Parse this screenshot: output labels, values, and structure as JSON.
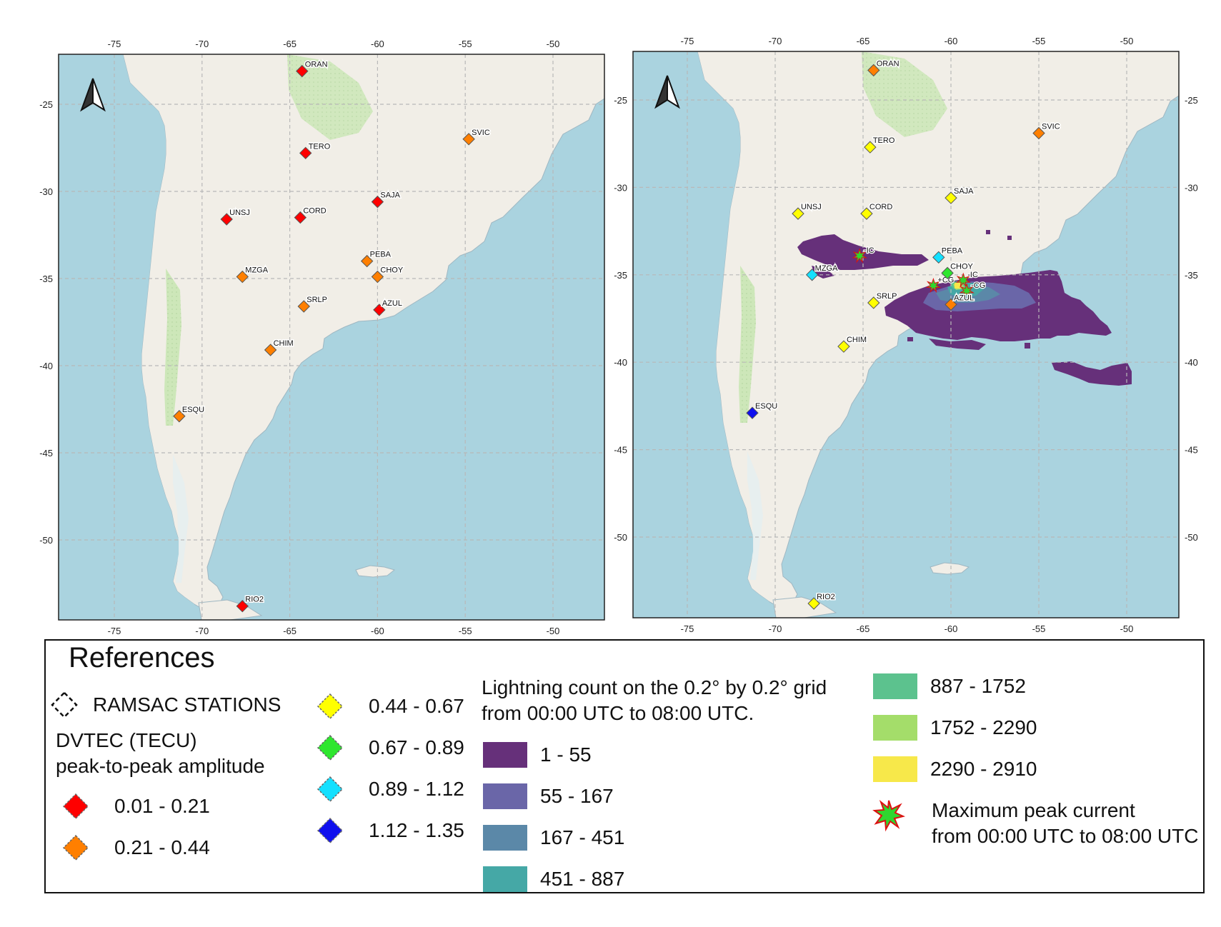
{
  "colors": {
    "ocean": "#aad3df",
    "land": "#f1eee7",
    "forest": "#c5e3b0",
    "park": "#dcecc8",
    "grid": "#b9b9b9",
    "border": "#222222"
  },
  "maps": [
    {
      "id": "left",
      "x_ticks": [
        "-75",
        "-70",
        "-65",
        "-60",
        "-55",
        "-50"
      ],
      "y_ticks": [
        "-25",
        "-30",
        "-35",
        "-40",
        "-45",
        "-50"
      ],
      "stations": [
        {
          "code": "ORAN",
          "lon": -64.3,
          "lat": -23.1,
          "class": "0.01 - 0.21"
        },
        {
          "code": "TERO",
          "lon": -64.1,
          "lat": -27.8,
          "class": "0.01 - 0.21"
        },
        {
          "code": "SVIC",
          "lon": -54.8,
          "lat": -27.0,
          "class": "0.21 - 0.44"
        },
        {
          "code": "SAJA",
          "lon": -60.0,
          "lat": -30.6,
          "class": "0.01 - 0.21"
        },
        {
          "code": "UNSJ",
          "lon": -68.6,
          "lat": -31.6,
          "class": "0.01 - 0.21"
        },
        {
          "code": "CORD",
          "lon": -64.4,
          "lat": -31.5,
          "class": "0.01 - 0.21"
        },
        {
          "code": "PEBA",
          "lon": -60.6,
          "lat": -34.0,
          "class": "0.21 - 0.44"
        },
        {
          "code": "MZGA",
          "lon": -67.7,
          "lat": -34.9,
          "class": "0.21 - 0.44"
        },
        {
          "code": "CHOY",
          "lon": -60.0,
          "lat": -34.9,
          "class": "0.21 - 0.44"
        },
        {
          "code": "SRLP",
          "lon": -64.2,
          "lat": -36.6,
          "class": "0.21 - 0.44"
        },
        {
          "code": "AZUL",
          "lon": -59.9,
          "lat": -36.8,
          "class": "0.01 - 0.21"
        },
        {
          "code": "CHIM",
          "lon": -66.1,
          "lat": -39.1,
          "class": "0.21 - 0.44"
        },
        {
          "code": "ESQU",
          "lon": -71.3,
          "lat": -42.9,
          "class": "0.21 - 0.44"
        },
        {
          "code": "RIO2",
          "lon": -67.7,
          "lat": -53.8,
          "class": "0.01 - 0.21"
        }
      ]
    },
    {
      "id": "right",
      "x_ticks": [
        "-75",
        "-70",
        "-65",
        "-60",
        "-55",
        "-50"
      ],
      "y_ticks": [
        "-25",
        "-30",
        "-35",
        "-40",
        "-45",
        "-50"
      ],
      "stations": [
        {
          "code": "ORAN",
          "lon": -64.4,
          "lat": -23.3,
          "class": "0.21 - 0.44"
        },
        {
          "code": "TERO",
          "lon": -64.6,
          "lat": -27.7,
          "class": "0.44 - 0.67"
        },
        {
          "code": "SVIC",
          "lon": -55.0,
          "lat": -26.9,
          "class": "0.21 - 0.44"
        },
        {
          "code": "SAJA",
          "lon": -60.0,
          "lat": -30.6,
          "class": "0.44 - 0.67"
        },
        {
          "code": "UNSJ",
          "lon": -68.7,
          "lat": -31.5,
          "class": "0.44 - 0.67"
        },
        {
          "code": "CORD",
          "lon": -64.8,
          "lat": -31.5,
          "class": "0.44 - 0.67"
        },
        {
          "code": "PEBA",
          "lon": -60.7,
          "lat": -34.0,
          "class": "0.89 - 1.12"
        },
        {
          "code": "MZGA",
          "lon": -67.9,
          "lat": -35.0,
          "class": "0.89 - 1.12"
        },
        {
          "code": "CHOY",
          "lon": -60.2,
          "lat": -34.9,
          "class": "0.67 - 0.89"
        },
        {
          "code": "SRLP",
          "lon": -64.4,
          "lat": -36.6,
          "class": "0.44 - 0.67"
        },
        {
          "code": "AZUL",
          "lon": -60.0,
          "lat": -36.7,
          "class": "0.21 - 0.44"
        },
        {
          "code": "CHIM",
          "lon": -66.1,
          "lat": -39.1,
          "class": "0.44 - 0.67"
        },
        {
          "code": "ESQU",
          "lon": -71.3,
          "lat": -42.9,
          "class": "1.12 - 1.35"
        },
        {
          "code": "RIO2",
          "lon": -67.8,
          "lat": -53.8,
          "class": "0.44 - 0.67"
        }
      ],
      "peak_current_labels": [
        {
          "text": "-IC",
          "lon": -65.2,
          "lat": -33.9
        },
        {
          "text": "+CG",
          "lon": -61.0,
          "lat": -35.6
        },
        {
          "text": "-IC",
          "lon": -59.3,
          "lat": -35.3
        },
        {
          "text": "-CG",
          "lon": -59.1,
          "lat": -35.9
        }
      ]
    }
  ],
  "legend": {
    "title": "References",
    "ramsac_label": "RAMSAC STATIONS",
    "dvtec_title_1": "DVTEC (TECU)",
    "dvtec_title_2": "peak-to-peak amplitude",
    "dvtec_classes": [
      {
        "label": "0.01 - 0.21",
        "color": "#ff0000"
      },
      {
        "label": "0.21 - 0.44",
        "color": "#ff7f00"
      },
      {
        "label": "0.44 - 0.67",
        "color": "#ffff00"
      },
      {
        "label": "0.67 - 0.89",
        "color": "#2ee62e"
      },
      {
        "label": "0.89 - 1.12",
        "color": "#14e0ff"
      },
      {
        "label": "1.12 - 1.35",
        "color": "#1010ee"
      }
    ],
    "lightning_title_1": "Lightning count on the 0.2° by  0.2° grid",
    "lightning_title_2": "from 00:00 UTC to  08:00 UTC.",
    "lightning_classes": [
      {
        "label": "1 - 55",
        "color": "#66307a"
      },
      {
        "label": "55 - 167",
        "color": "#6a66a8"
      },
      {
        "label": "167 - 451",
        "color": "#5b88a8"
      },
      {
        "label": "451 - 887",
        "color": "#45a8a6"
      },
      {
        "label": "887 - 1752",
        "color": "#5cc28e"
      },
      {
        "label": "1752 - 2290",
        "color": "#a4dd6a"
      },
      {
        "label": "2290 - 2910",
        "color": "#f7e84a"
      }
    ],
    "peak_label_1": "Maximum peak current",
    "peak_label_2": "from 00:00 UTC to 08:00 UTC"
  }
}
